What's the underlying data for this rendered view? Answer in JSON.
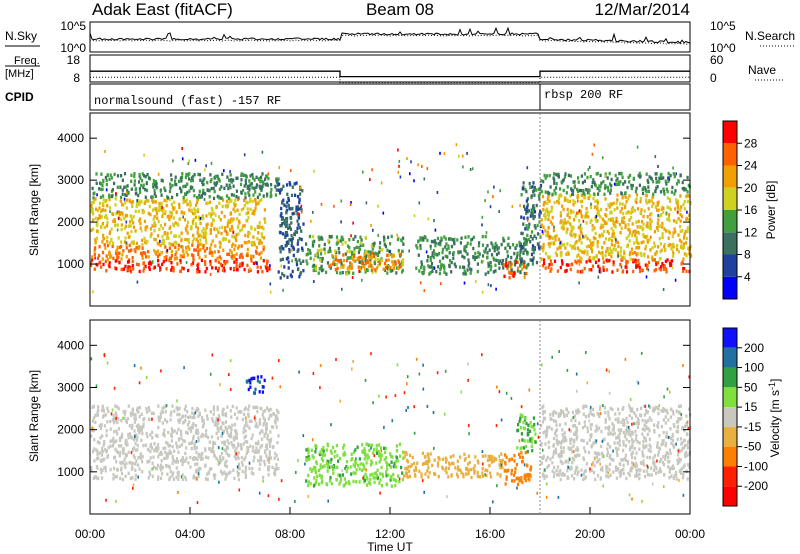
{
  "header": {
    "station": "Adak East (fitACF)",
    "beam": "Beam 08",
    "date": "12/Mar/2014"
  },
  "strip_labels": {
    "nsky": "N.Sky",
    "nsky_ticks": [
      "10^5",
      "10^0"
    ],
    "nsearch": "N.Search",
    "nsearch_ticks": [
      "10^5",
      "10^0"
    ],
    "freq_line1": "Freq.",
    "freq_line2": "[MHz]",
    "freq_ticks": [
      "18",
      "8"
    ],
    "nave": "Nave",
    "nave_ticks": [
      "60",
      "0"
    ],
    "cpid": "CPID",
    "cpid_modes": [
      "normalsound (fast) -157 RF",
      "rbsp 200 RF"
    ]
  },
  "power_panel": {
    "ylabel": "Slant Range [km]",
    "yticks": [
      "1000",
      "2000",
      "3000",
      "4000"
    ],
    "cbar_label": "Power [dB]",
    "cbar_ticks": [
      "4",
      "8",
      "12",
      "16",
      "20",
      "24",
      "28"
    ],
    "cbar_colors": [
      "#0000ff",
      "#2040a0",
      "#3a7060",
      "#40a040",
      "#d0d020",
      "#f0a000",
      "#ff6000",
      "#ff0000"
    ]
  },
  "velocity_panel": {
    "ylabel": "Slant Range [km]",
    "yticks": [
      "1000",
      "2000",
      "3000",
      "4000"
    ],
    "cbar_label": "Velocity [m s",
    "cbar_label_sup": "-1",
    "cbar_label_end": "]",
    "cbar_ticks": [
      "200",
      "100",
      "50",
      "15",
      "-15",
      "-50",
      "-100",
      "-200"
    ],
    "cbar_colors": [
      "#1010ff",
      "#2070a0",
      "#30a040",
      "#80e040",
      "#c8c8c0",
      "#e8b040",
      "#ff8000",
      "#ff2000",
      "#ff0000"
    ]
  },
  "time_axis": {
    "xlabel": "Time UT",
    "ticks": [
      "00:00",
      "04:00",
      "08:00",
      "12:00",
      "16:00",
      "20:00",
      "00:00"
    ]
  },
  "chart_data": {
    "type": "heatmap",
    "title": "Adak East (fitACF) Beam 08 12/Mar/2014",
    "xlabel": "Time UT",
    "ylabel": "Slant Range [km]",
    "xlim_hours": [
      0,
      24
    ],
    "ylim_km": [
      0,
      4600
    ],
    "freq_mhz_segments": [
      {
        "t0": 0.0,
        "t1": 10.0,
        "value": 12
      },
      {
        "t0": 10.0,
        "t1": 18.0,
        "value": 10
      },
      {
        "t0": 18.0,
        "t1": 24.0,
        "value": 12
      }
    ],
    "cpid_segments": [
      {
        "t0": 0.0,
        "t1": 18.0,
        "mode": "normalsound (fast) -157 RF"
      },
      {
        "t0": 18.0,
        "t1": 24.0,
        "mode": "rbsp 200 RF"
      }
    ],
    "power_regions": [
      {
        "t0": 0.0,
        "t1": 7.2,
        "r0": 850,
        "r1": 1150,
        "value_db": 28
      },
      {
        "t0": 0.0,
        "t1": 7.0,
        "r0": 1150,
        "r1": 1500,
        "value_db": 24
      },
      {
        "t0": 0.0,
        "t1": 7.0,
        "r0": 1500,
        "r1": 2600,
        "value_db": 20
      },
      {
        "t0": 0.0,
        "t1": 7.5,
        "r0": 2600,
        "r1": 3200,
        "value_db": 12
      },
      {
        "t0": 7.5,
        "t1": 8.5,
        "r0": 700,
        "r1": 3000,
        "value_db": 8
      },
      {
        "t0": 8.6,
        "t1": 12.5,
        "r0": 800,
        "r1": 1700,
        "value_db": 14
      },
      {
        "t0": 9.5,
        "t1": 12.5,
        "r0": 900,
        "r1": 1300,
        "value_db": 24
      },
      {
        "t0": 13.0,
        "t1": 17.5,
        "r0": 800,
        "r1": 1700,
        "value_db": 12
      },
      {
        "t0": 16.5,
        "t1": 17.5,
        "r0": 700,
        "r1": 1100,
        "value_db": 26
      },
      {
        "t0": 17.2,
        "t1": 18.0,
        "r0": 1000,
        "r1": 3000,
        "value_db": 10
      },
      {
        "t0": 18.0,
        "t1": 24.0,
        "r0": 850,
        "r1": 1150,
        "value_db": 28
      },
      {
        "t0": 18.0,
        "t1": 24.0,
        "r0": 1150,
        "r1": 2700,
        "value_db": 20
      },
      {
        "t0": 18.0,
        "t1": 24.0,
        "r0": 2700,
        "r1": 3200,
        "value_db": 12
      }
    ],
    "velocity_regions": [
      {
        "t0": 0.0,
        "t1": 7.5,
        "r0": 850,
        "r1": 2600,
        "value_ms": 0
      },
      {
        "t0": 6.2,
        "t1": 7.0,
        "r0": 2900,
        "r1": 3300,
        "value_ms": 200
      },
      {
        "t0": 8.6,
        "t1": 12.5,
        "r0": 700,
        "r1": 1700,
        "value_ms": 40
      },
      {
        "t0": 12.5,
        "t1": 16.5,
        "r0": 900,
        "r1": 1500,
        "value_ms": -30
      },
      {
        "t0": 16.5,
        "t1": 17.6,
        "r0": 700,
        "r1": 1500,
        "value_ms": -80
      },
      {
        "t0": 17.0,
        "t1": 17.8,
        "r0": 1500,
        "r1": 2400,
        "value_ms": 50
      },
      {
        "t0": 18.0,
        "t1": 24.0,
        "r0": 850,
        "r1": 2600,
        "value_ms": 0
      }
    ]
  }
}
